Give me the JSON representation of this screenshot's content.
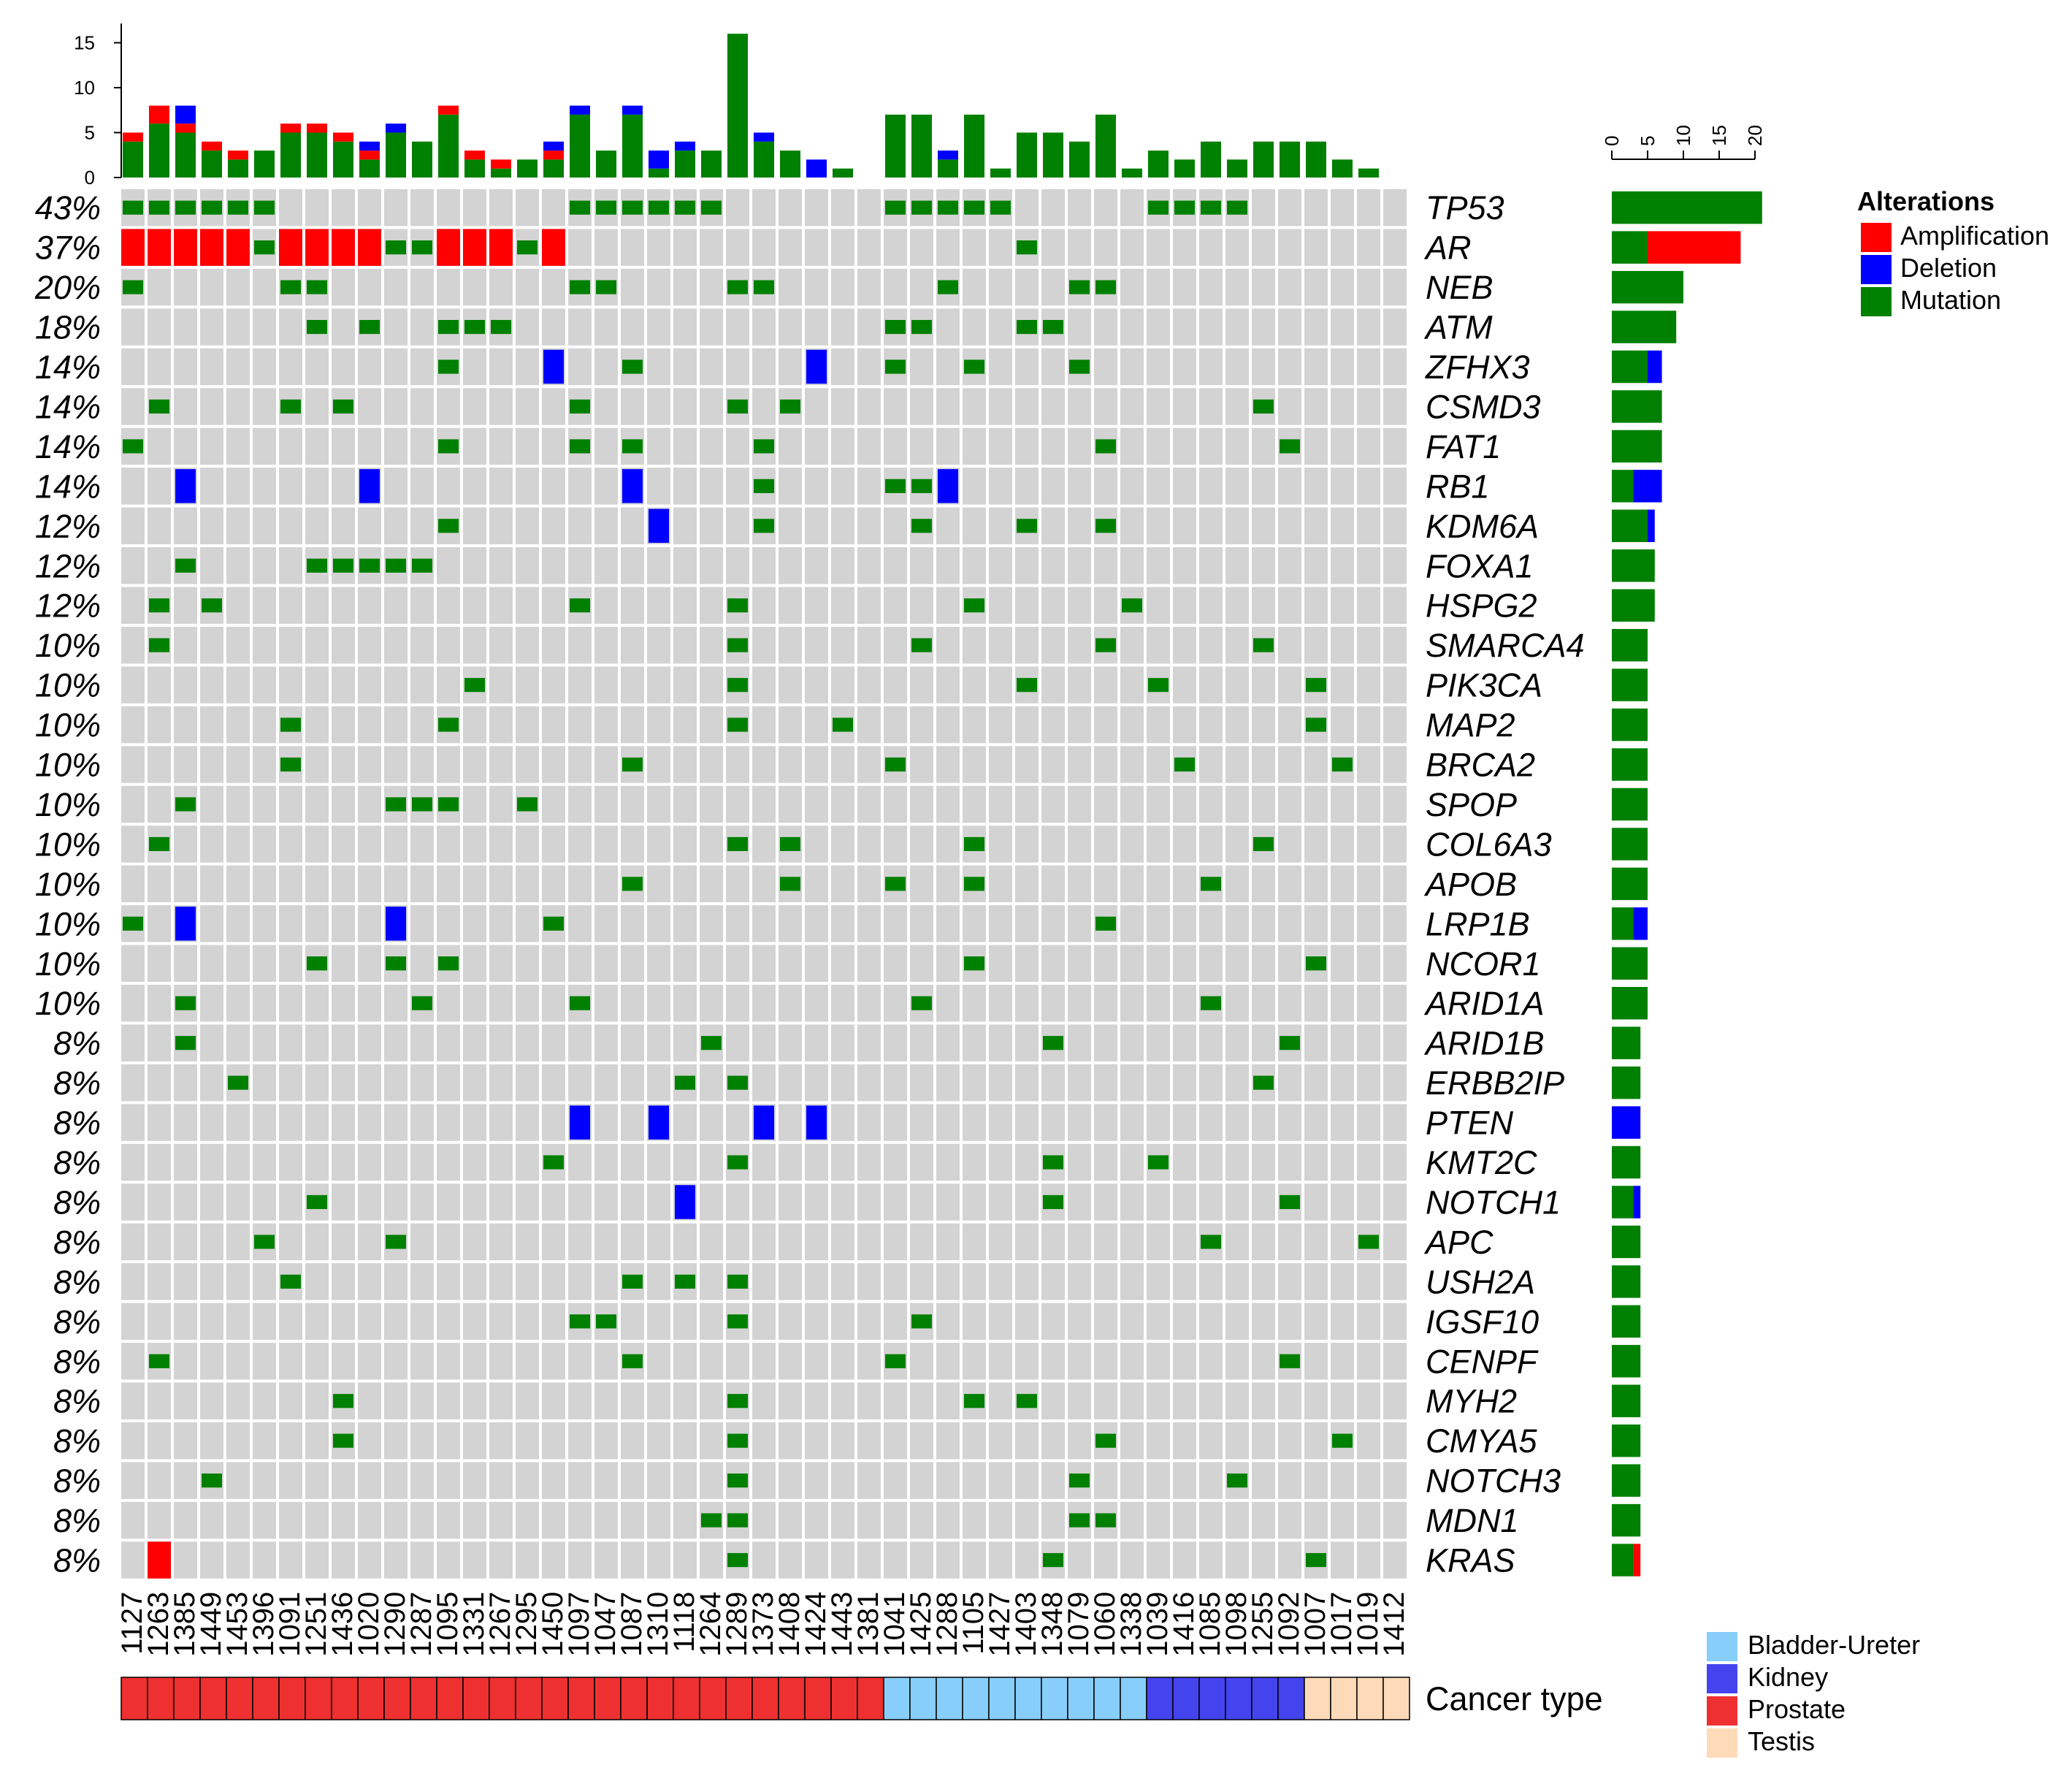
{
  "chart_data": {
    "type": "oncoprint",
    "colors": {
      "amplification": "#ff0000",
      "deletion": "#0000ff",
      "mutation": "#008000",
      "background": "#d3d3d3",
      "cancer_types": {
        "Bladder-Ureter": "#87cefa",
        "Kidney": "#4444ee",
        "Prostate": "#ee3030",
        "Testis": "#ffdab9"
      }
    },
    "samples": [
      "1127",
      "1263",
      "1385",
      "1449",
      "1453",
      "1396",
      "1091",
      "1251",
      "1436",
      "1020",
      "1290",
      "1287",
      "1095",
      "1331",
      "1267",
      "1295",
      "1450",
      "1097",
      "1047",
      "1087",
      "1310",
      "1118",
      "1264",
      "1289",
      "1373",
      "1408",
      "1424",
      "1443",
      "1381",
      "1041",
      "1425",
      "1288",
      "1105",
      "1427",
      "1403",
      "1348",
      "1079",
      "1060",
      "1338",
      "1039",
      "1416",
      "1085",
      "1098",
      "1255",
      "1092",
      "1007",
      "1017",
      "1019",
      "1412"
    ],
    "cancer_type": [
      "Prostate",
      "Prostate",
      "Prostate",
      "Prostate",
      "Prostate",
      "Prostate",
      "Prostate",
      "Prostate",
      "Prostate",
      "Prostate",
      "Prostate",
      "Prostate",
      "Prostate",
      "Prostate",
      "Prostate",
      "Prostate",
      "Prostate",
      "Prostate",
      "Prostate",
      "Prostate",
      "Prostate",
      "Prostate",
      "Prostate",
      "Prostate",
      "Prostate",
      "Prostate",
      "Prostate",
      "Prostate",
      "Prostate",
      "Bladder-Ureter",
      "Bladder-Ureter",
      "Bladder-Ureter",
      "Bladder-Ureter",
      "Bladder-Ureter",
      "Bladder-Ureter",
      "Bladder-Ureter",
      "Bladder-Ureter",
      "Bladder-Ureter",
      "Bladder-Ureter",
      "Kidney",
      "Kidney",
      "Kidney",
      "Kidney",
      "Kidney",
      "Kidney",
      "Testis",
      "Testis",
      "Testis",
      "Testis"
    ],
    "genes": [
      {
        "name": "TP53",
        "pct": "43%",
        "mut": [
          0,
          1,
          2,
          3,
          4,
          5,
          17,
          18,
          19,
          20,
          21,
          22,
          29,
          30,
          31,
          32,
          33,
          39,
          40,
          41,
          42
        ],
        "amp": [],
        "del": []
      },
      {
        "name": "AR",
        "pct": "37%",
        "mut": [
          5,
          10,
          11,
          15,
          34
        ],
        "amp": [
          0,
          1,
          2,
          3,
          4,
          6,
          7,
          8,
          9,
          12,
          13,
          14,
          16
        ],
        "del": []
      },
      {
        "name": "NEB",
        "pct": "20%",
        "mut": [
          0,
          6,
          7,
          17,
          18,
          23,
          24,
          31,
          36,
          37
        ],
        "amp": [],
        "del": []
      },
      {
        "name": "ATM",
        "pct": "18%",
        "mut": [
          7,
          9,
          12,
          13,
          14,
          29,
          30,
          34,
          35
        ],
        "amp": [],
        "del": []
      },
      {
        "name": "ZFHX3",
        "pct": "14%",
        "mut": [
          12,
          19,
          29,
          32,
          36
        ],
        "amp": [],
        "del": [
          16,
          26
        ]
      },
      {
        "name": "CSMD3",
        "pct": "14%",
        "mut": [
          1,
          6,
          8,
          17,
          23,
          25,
          43
        ],
        "amp": [],
        "del": []
      },
      {
        "name": "FAT1",
        "pct": "14%",
        "mut": [
          0,
          12,
          17,
          19,
          24,
          37,
          44
        ],
        "amp": [],
        "del": []
      },
      {
        "name": "RB1",
        "pct": "14%",
        "mut": [
          24,
          29,
          30
        ],
        "amp": [],
        "del": [
          2,
          9,
          19,
          31
        ]
      },
      {
        "name": "KDM6A",
        "pct": "12%",
        "mut": [
          12,
          24,
          30,
          34,
          37
        ],
        "amp": [],
        "del": [
          20
        ]
      },
      {
        "name": "FOXA1",
        "pct": "12%",
        "mut": [
          2,
          7,
          8,
          9,
          10,
          11
        ],
        "amp": [],
        "del": []
      },
      {
        "name": "HSPG2",
        "pct": "12%",
        "mut": [
          1,
          3,
          17,
          23,
          32,
          38
        ],
        "amp": [],
        "del": []
      },
      {
        "name": "SMARCA4",
        "pct": "10%",
        "mut": [
          1,
          23,
          30,
          37,
          43
        ],
        "amp": [],
        "del": []
      },
      {
        "name": "PIK3CA",
        "pct": "10%",
        "mut": [
          13,
          23,
          34,
          39,
          45
        ],
        "amp": [],
        "del": []
      },
      {
        "name": "MAP2",
        "pct": "10%",
        "mut": [
          6,
          12,
          23,
          27,
          45
        ],
        "amp": [],
        "del": []
      },
      {
        "name": "BRCA2",
        "pct": "10%",
        "mut": [
          6,
          19,
          29,
          40,
          46
        ],
        "amp": [],
        "del": []
      },
      {
        "name": "SPOP",
        "pct": "10%",
        "mut": [
          2,
          10,
          11,
          12,
          15
        ],
        "amp": [],
        "del": []
      },
      {
        "name": "COL6A3",
        "pct": "10%",
        "mut": [
          1,
          23,
          25,
          32,
          43
        ],
        "amp": [],
        "del": []
      },
      {
        "name": "APOB",
        "pct": "10%",
        "mut": [
          19,
          25,
          29,
          32,
          41
        ],
        "amp": [],
        "del": []
      },
      {
        "name": "LRP1B",
        "pct": "10%",
        "mut": [
          0,
          16,
          37
        ],
        "amp": [],
        "del": [
          2,
          10
        ]
      },
      {
        "name": "NCOR1",
        "pct": "10%",
        "mut": [
          7,
          10,
          12,
          32,
          45
        ],
        "amp": [],
        "del": []
      },
      {
        "name": "ARID1A",
        "pct": "10%",
        "mut": [
          2,
          11,
          17,
          30,
          41
        ],
        "amp": [],
        "del": []
      },
      {
        "name": "ARID1B",
        "pct": "8%",
        "mut": [
          2,
          22,
          35,
          44
        ],
        "amp": [],
        "del": []
      },
      {
        "name": "ERBB2IP",
        "pct": "8%",
        "mut": [
          4,
          21,
          23,
          43
        ],
        "amp": [],
        "del": []
      },
      {
        "name": "PTEN",
        "pct": "8%",
        "mut": [],
        "amp": [],
        "del": [
          17,
          20,
          24,
          26
        ]
      },
      {
        "name": "KMT2C",
        "pct": "8%",
        "mut": [
          16,
          23,
          35,
          39
        ],
        "amp": [],
        "del": []
      },
      {
        "name": "NOTCH1",
        "pct": "8%",
        "mut": [
          7,
          35,
          44
        ],
        "amp": [],
        "del": [
          21
        ]
      },
      {
        "name": "APC",
        "pct": "8%",
        "mut": [
          5,
          10,
          41,
          47
        ],
        "amp": [],
        "del": []
      },
      {
        "name": "USH2A",
        "pct": "8%",
        "mut": [
          6,
          19,
          21,
          23
        ],
        "amp": [],
        "del": []
      },
      {
        "name": "IGSF10",
        "pct": "8%",
        "mut": [
          17,
          18,
          23,
          30
        ],
        "amp": [],
        "del": []
      },
      {
        "name": "CENPF",
        "pct": "8%",
        "mut": [
          1,
          19,
          29,
          44
        ],
        "amp": [],
        "del": []
      },
      {
        "name": "MYH2",
        "pct": "8%",
        "mut": [
          8,
          23,
          32,
          34
        ],
        "amp": [],
        "del": []
      },
      {
        "name": "CMYA5",
        "pct": "8%",
        "mut": [
          8,
          23,
          37,
          46
        ],
        "amp": [],
        "del": []
      },
      {
        "name": "NOTCH3",
        "pct": "8%",
        "mut": [
          3,
          23,
          36,
          42
        ],
        "amp": [],
        "del": []
      },
      {
        "name": "MDN1",
        "pct": "8%",
        "mut": [
          22,
          23,
          36,
          37
        ],
        "amp": [],
        "del": []
      },
      {
        "name": "KRAS",
        "pct": "8%",
        "mut": [
          23,
          35,
          45
        ],
        "amp": [
          1
        ],
        "del": []
      }
    ],
    "top_bar": {
      "ylim": [
        0,
        16
      ],
      "ticks": [
        0,
        5,
        10,
        15
      ],
      "values": [
        {
          "mut": 4,
          "amp": 1,
          "del": 0
        },
        {
          "mut": 6,
          "amp": 2,
          "del": 0
        },
        {
          "mut": 5,
          "amp": 1,
          "del": 2
        },
        {
          "mut": 3,
          "amp": 1,
          "del": 0
        },
        {
          "mut": 2,
          "amp": 1,
          "del": 0
        },
        {
          "mut": 3,
          "amp": 0,
          "del": 0
        },
        {
          "mut": 5,
          "amp": 1,
          "del": 0
        },
        {
          "mut": 5,
          "amp": 1,
          "del": 0
        },
        {
          "mut": 4,
          "amp": 1,
          "del": 0
        },
        {
          "mut": 2,
          "amp": 1,
          "del": 1
        },
        {
          "mut": 5,
          "amp": 0,
          "del": 1
        },
        {
          "mut": 4,
          "amp": 0,
          "del": 0
        },
        {
          "mut": 7,
          "amp": 1,
          "del": 0
        },
        {
          "mut": 2,
          "amp": 1,
          "del": 0
        },
        {
          "mut": 1,
          "amp": 1,
          "del": 0
        },
        {
          "mut": 2,
          "amp": 0,
          "del": 0
        },
        {
          "mut": 2,
          "amp": 1,
          "del": 1
        },
        {
          "mut": 7,
          "amp": 0,
          "del": 1
        },
        {
          "mut": 3,
          "amp": 0,
          "del": 0
        },
        {
          "mut": 7,
          "amp": 0,
          "del": 1
        },
        {
          "mut": 1,
          "amp": 0,
          "del": 2
        },
        {
          "mut": 3,
          "amp": 0,
          "del": 1
        },
        {
          "mut": 3,
          "amp": 0,
          "del": 0
        },
        {
          "mut": 16,
          "amp": 0,
          "del": 0
        },
        {
          "mut": 4,
          "amp": 0,
          "del": 1
        },
        {
          "mut": 3,
          "amp": 0,
          "del": 0
        },
        {
          "mut": 0,
          "amp": 0,
          "del": 2
        },
        {
          "mut": 1,
          "amp": 0,
          "del": 0
        },
        {
          "mut": 0,
          "amp": 0,
          "del": 0
        },
        {
          "mut": 7,
          "amp": 0,
          "del": 0
        },
        {
          "mut": 7,
          "amp": 0,
          "del": 0
        },
        {
          "mut": 2,
          "amp": 0,
          "del": 1
        },
        {
          "mut": 7,
          "amp": 0,
          "del": 0
        },
        {
          "mut": 1,
          "amp": 0,
          "del": 0
        },
        {
          "mut": 5,
          "amp": 0,
          "del": 0
        },
        {
          "mut": 5,
          "amp": 0,
          "del": 0
        },
        {
          "mut": 4,
          "amp": 0,
          "del": 0
        },
        {
          "mut": 7,
          "amp": 0,
          "del": 0
        },
        {
          "mut": 1,
          "amp": 0,
          "del": 0
        },
        {
          "mut": 3,
          "amp": 0,
          "del": 0
        },
        {
          "mut": 2,
          "amp": 0,
          "del": 0
        },
        {
          "mut": 4,
          "amp": 0,
          "del": 0
        },
        {
          "mut": 2,
          "amp": 0,
          "del": 0
        },
        {
          "mut": 4,
          "amp": 0,
          "del": 0
        },
        {
          "mut": 4,
          "amp": 0,
          "del": 0
        },
        {
          "mut": 4,
          "amp": 0,
          "del": 0
        },
        {
          "mut": 2,
          "amp": 0,
          "del": 0
        },
        {
          "mut": 1,
          "amp": 0,
          "del": 0
        },
        {
          "mut": 0,
          "amp": 0,
          "del": 0
        }
      ]
    },
    "right_bar": {
      "ticks": [
        0,
        5,
        10,
        15,
        20
      ],
      "xlim": [
        0,
        20
      ]
    },
    "legend": {
      "title": "Alterations",
      "items": [
        {
          "label": "Amplification",
          "key": "amplification"
        },
        {
          "label": "Deletion",
          "key": "deletion"
        },
        {
          "label": "Mutation",
          "key": "mutation"
        }
      ]
    },
    "cancer_legend": [
      "Bladder-Ureter",
      "Kidney",
      "Prostate",
      "Testis"
    ],
    "cancer_label": "Cancer type"
  }
}
